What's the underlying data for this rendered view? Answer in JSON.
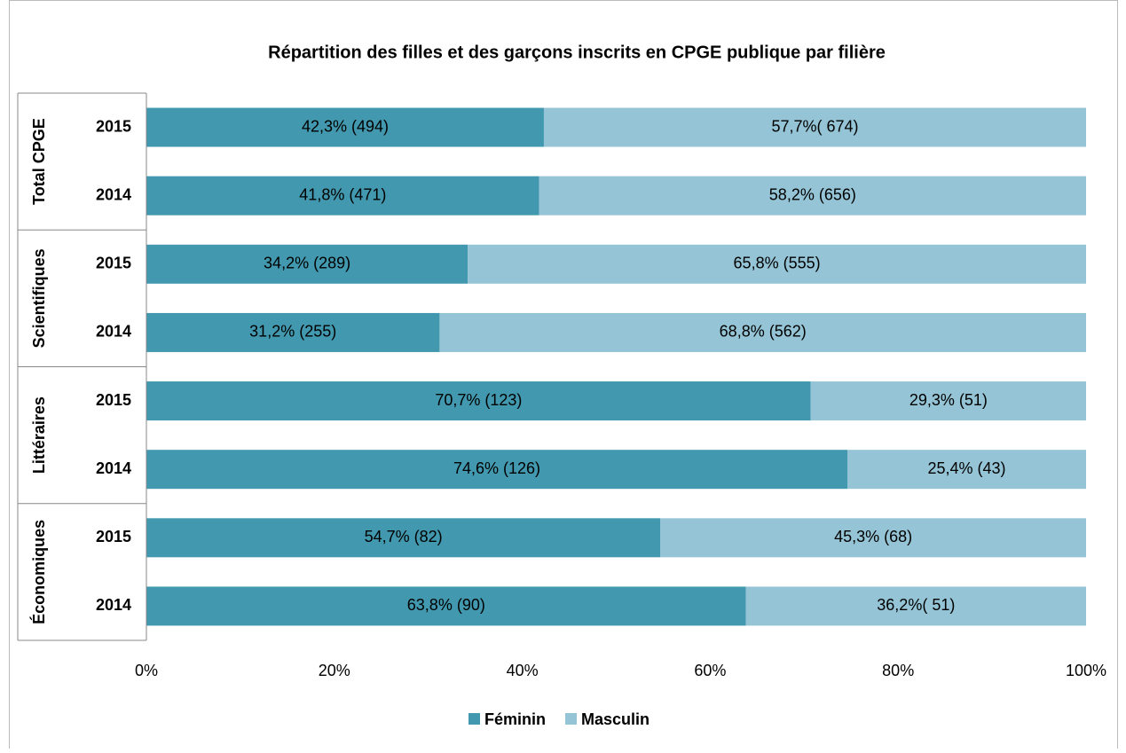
{
  "chart_data": {
    "type": "stacked_barh",
    "title": "Répartition des filles et des garçons inscrits en CPGE publique par filière",
    "groups": [
      "Total CPGE",
      "Scientifiques",
      "Littéraires",
      "Économiques"
    ],
    "categories": [
      "2015",
      "2014",
      "2015",
      "2014",
      "2015",
      "2014",
      "2015",
      "2014"
    ],
    "series": [
      {
        "name": "Féminin",
        "color": "#4298ae",
        "values": [
          42.3,
          41.8,
          34.2,
          31.2,
          70.7,
          74.6,
          54.7,
          63.8
        ],
        "value_labels": [
          "42,3% (494)",
          "41,8% (471)",
          "34,2% (289)",
          "31,2% (255)",
          "70,7% (123)",
          "74,6% (126)",
          "54,7% (82)",
          "63,8% (90)"
        ]
      },
      {
        "name": "Masculin",
        "color": "#94c4d5",
        "values": [
          57.7,
          58.2,
          65.8,
          68.8,
          29.3,
          25.4,
          45.3,
          36.2
        ],
        "value_labels": [
          "57,7%( 674)",
          "58,2% (656)",
          "65,8% (555)",
          "68,8% (562)",
          "29,3% (51)",
          "25,4% (43)",
          "45,3% (68)",
          "36,2%( 51)"
        ]
      }
    ],
    "xlim": [
      0,
      100
    ],
    "xticks": [
      {
        "value": 0,
        "label": "0%"
      },
      {
        "value": 20,
        "label": "20%"
      },
      {
        "value": 40,
        "label": "40%"
      },
      {
        "value": 60,
        "label": "60%"
      },
      {
        "value": 80,
        "label": "80%"
      },
      {
        "value": 100,
        "label": "100%"
      }
    ],
    "legend": "bottom"
  }
}
